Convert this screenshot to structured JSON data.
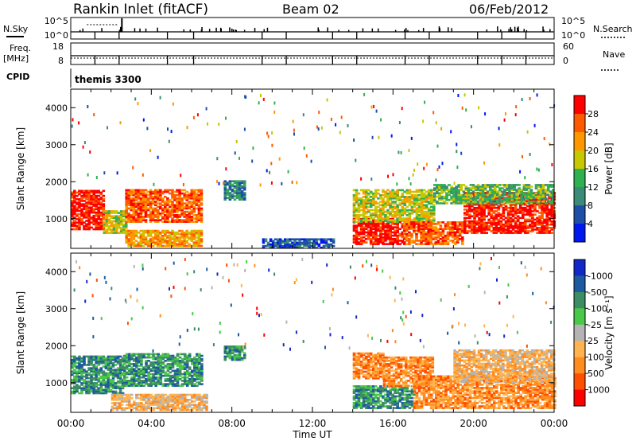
{
  "header": {
    "title": "Rankin Inlet (fitACF)",
    "beam": "Beam 02",
    "date": "06/Feb/2012"
  },
  "summary_panels": {
    "nsky_label": "N.Sky",
    "nsky_ticks": [
      "10^5",
      "10^0"
    ],
    "nsearch_label": "N.Search",
    "nsearch_ticks": [
      "10^5",
      "10^0"
    ],
    "freq_label": "Freq.",
    "freq_unit": "[MHz]",
    "freq_ticks": [
      "18",
      "8"
    ],
    "nave_label": "Nave",
    "nave_ticks": [
      "60",
      "0"
    ],
    "cpid_label": "CPID",
    "cpid_value": "themis 3300"
  },
  "chart_data": [
    {
      "type": "heatmap",
      "name": "power",
      "ylabel": "Slant Range [km]",
      "ylim": [
        200,
        4500
      ],
      "yticks": [
        1000,
        2000,
        3000,
        4000
      ],
      "xlim": [
        0,
        24
      ],
      "colorbar_label": "Power [dB]",
      "colorbar_ticks": [
        "4",
        "8",
        "12",
        "16",
        "20",
        "24",
        "28"
      ],
      "colorbar_colors": [
        "#0018f0",
        "#1e4ea8",
        "#3c8a78",
        "#30b050",
        "#c8c800",
        "#ff9800",
        "#ff5a00",
        "#ff0000"
      ],
      "regions": [
        {
          "t0": 0.0,
          "t1": 1.6,
          "r0": 700,
          "r1": 1750,
          "level": 7
        },
        {
          "t0": 1.6,
          "t1": 2.7,
          "r0": 600,
          "r1": 1200,
          "level": 4
        },
        {
          "t0": 2.7,
          "t1": 6.5,
          "r0": 900,
          "r1": 1800,
          "level": 6
        },
        {
          "t0": 2.7,
          "t1": 6.5,
          "r0": 250,
          "r1": 700,
          "level": 5
        },
        {
          "t0": 7.6,
          "t1": 8.6,
          "r0": 1500,
          "r1": 2000,
          "level": 2
        },
        {
          "t0": 9.5,
          "t1": 13.0,
          "r0": 200,
          "r1": 450,
          "level": 1
        },
        {
          "t0": 14.0,
          "t1": 16.5,
          "r0": 300,
          "r1": 1000,
          "level": 7
        },
        {
          "t0": 14.0,
          "t1": 18.0,
          "r0": 900,
          "r1": 1800,
          "level": 4
        },
        {
          "t0": 16.5,
          "t1": 19.5,
          "r0": 300,
          "r1": 900,
          "level": 6
        },
        {
          "t0": 19.5,
          "t1": 24.0,
          "r0": 600,
          "r1": 1700,
          "level": 7
        },
        {
          "t0": 18.0,
          "t1": 24.0,
          "r0": 1400,
          "r1": 1900,
          "level": 3
        }
      ]
    },
    {
      "type": "heatmap",
      "name": "velocity",
      "ylabel": "Slant Range [km]",
      "ylim": [
        200,
        4500
      ],
      "yticks": [
        1000,
        2000,
        3000,
        4000
      ],
      "xlim": [
        0,
        24
      ],
      "xlabel": "Time UT",
      "xticks": [
        "00:00",
        "04:00",
        "08:00",
        "12:00",
        "16:00",
        "20:00",
        "00:00"
      ],
      "colorbar_label": "Velocity [m s⁻¹]",
      "colorbar_ticks": [
        "1000",
        "500",
        "100",
        "25",
        "-25",
        "-100",
        "-500",
        "-1000"
      ],
      "colorbar_colors": [
        "#ff0000",
        "#ff5000",
        "#ff8c1e",
        "#ffb450",
        "#b4b4b4",
        "#4ac84a",
        "#3c8c64",
        "#1e5aa0",
        "#1428c8"
      ],
      "regions": [
        {
          "t0": 0.0,
          "t1": 2.6,
          "r0": 700,
          "r1": 1700,
          "level": 6
        },
        {
          "t0": 2.6,
          "t1": 6.5,
          "r0": 900,
          "r1": 1800,
          "level": 6
        },
        {
          "t0": 7.6,
          "t1": 8.6,
          "r0": 1600,
          "r1": 2000,
          "level": 6
        },
        {
          "t0": 2.0,
          "t1": 6.8,
          "r0": 250,
          "r1": 700,
          "level": 3
        },
        {
          "t0": 14.0,
          "t1": 15.5,
          "r0": 1100,
          "r1": 1800,
          "level": 2
        },
        {
          "t0": 14.0,
          "t1": 17.0,
          "r0": 300,
          "r1": 900,
          "level": 6
        },
        {
          "t0": 15.5,
          "t1": 18.0,
          "r0": 900,
          "r1": 1700,
          "level": 2
        },
        {
          "t0": 17.0,
          "t1": 24.0,
          "r0": 300,
          "r1": 1200,
          "level": 2
        },
        {
          "t0": 19.0,
          "t1": 24.0,
          "r0": 1000,
          "r1": 1900,
          "level": 3
        }
      ]
    }
  ]
}
